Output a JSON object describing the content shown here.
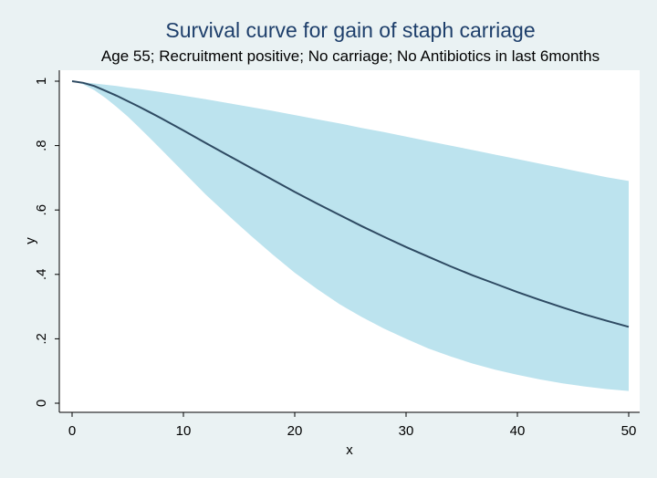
{
  "chart_data": {
    "type": "area",
    "title": "Survival curve for gain of staph carriage",
    "subtitle": "Age 55; Recruitment positive; No carriage; No Antibiotics in last 6months",
    "xlabel": "x",
    "ylabel": "y",
    "xlim": [
      0,
      50
    ],
    "ylim": [
      0,
      1
    ],
    "x_ticks": [
      0,
      10,
      20,
      30,
      40,
      50
    ],
    "x_tick_labels": [
      "0",
      "10",
      "20",
      "30",
      "40",
      "50"
    ],
    "y_ticks": [
      0,
      0.2,
      0.4,
      0.6,
      0.8,
      1
    ],
    "y_tick_labels": [
      "0",
      ".2",
      ".4",
      ".6",
      ".8",
      "1"
    ],
    "grid": false,
    "legend": "none",
    "series": [
      {
        "role": "confidence-band",
        "color": "#bce3ee",
        "x": [
          0,
          1,
          2,
          3,
          4,
          5,
          6,
          7,
          8,
          10,
          12,
          14,
          16,
          18,
          20,
          22,
          24,
          26,
          28,
          30,
          32,
          34,
          36,
          38,
          40,
          42,
          44,
          46,
          48,
          50
        ],
        "upper": [
          1.0,
          0.997,
          0.993,
          0.989,
          0.985,
          0.98,
          0.976,
          0.971,
          0.966,
          0.955,
          0.944,
          0.932,
          0.92,
          0.908,
          0.895,
          0.882,
          0.869,
          0.855,
          0.842,
          0.828,
          0.814,
          0.8,
          0.786,
          0.772,
          0.758,
          0.744,
          0.73,
          0.716,
          0.702,
          0.69
        ],
        "lower": [
          1.0,
          0.99,
          0.972,
          0.948,
          0.92,
          0.89,
          0.857,
          0.823,
          0.788,
          0.718,
          0.648,
          0.584,
          0.522,
          0.462,
          0.405,
          0.355,
          0.308,
          0.268,
          0.232,
          0.2,
          0.17,
          0.145,
          0.123,
          0.104,
          0.088,
          0.074,
          0.062,
          0.052,
          0.044,
          0.038
        ]
      },
      {
        "role": "survival",
        "color": "#2e4a62",
        "x": [
          0,
          1,
          2,
          3,
          4,
          5,
          6,
          7,
          8,
          10,
          12,
          14,
          16,
          18,
          20,
          22,
          24,
          26,
          28,
          30,
          32,
          34,
          36,
          38,
          40,
          42,
          44,
          46,
          48,
          50
        ],
        "y": [
          1.0,
          0.995,
          0.985,
          0.97,
          0.955,
          0.938,
          0.921,
          0.903,
          0.885,
          0.847,
          0.808,
          0.77,
          0.732,
          0.694,
          0.656,
          0.62,
          0.585,
          0.55,
          0.517,
          0.485,
          0.455,
          0.425,
          0.397,
          0.371,
          0.345,
          0.321,
          0.298,
          0.276,
          0.256,
          0.237
        ]
      }
    ]
  }
}
